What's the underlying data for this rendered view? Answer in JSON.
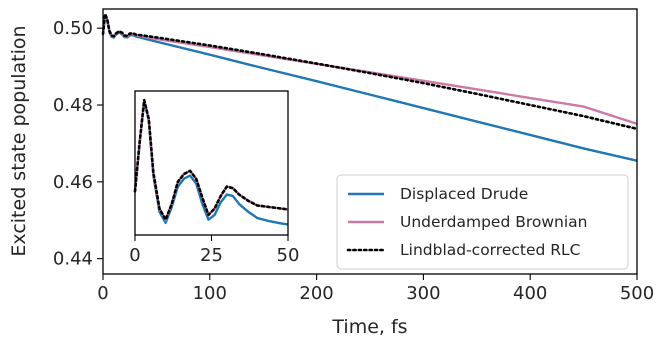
{
  "chart_data": [
    {
      "type": "line",
      "panel": "main",
      "xlabel": "Time, fs",
      "ylabel": "Excited state population",
      "xlim": [
        0,
        500
      ],
      "ylim": [
        0.436,
        0.505
      ],
      "xticks": [
        0,
        100,
        200,
        300,
        400,
        500
      ],
      "xtick_labels": [
        "0",
        "100",
        "200",
        "300",
        "400",
        "500"
      ],
      "yticks": [
        0.44,
        0.46,
        0.48,
        0.5
      ],
      "ytick_labels": [
        "0.44",
        "0.46",
        "0.48",
        "0.50"
      ],
      "grid": false,
      "legend_position": "lower-right",
      "series": [
        {
          "name": "Displaced Drude",
          "color": "#1f77b4",
          "style": "solid",
          "x": [
            0,
            2,
            4,
            6,
            8,
            10,
            12,
            15,
            18,
            20,
            23,
            25,
            28,
            31,
            35,
            40,
            50,
            100,
            150,
            200,
            250,
            300,
            350,
            400,
            450,
            500
          ],
          "y": [
            0.4985,
            0.5035,
            0.502,
            0.499,
            0.4978,
            0.4976,
            0.4983,
            0.4989,
            0.4984,
            0.4977,
            0.4976,
            0.4982,
            0.4982,
            0.4978,
            0.4976,
            0.4972,
            0.4965,
            0.4931,
            0.4896,
            0.4862,
            0.4827,
            0.4792,
            0.4757,
            0.4722,
            0.4687,
            0.4655
          ]
        },
        {
          "name": "Underdamped Brownian",
          "color": "#cc79a7",
          "style": "solid",
          "x": [
            0,
            2,
            4,
            6,
            8,
            10,
            12,
            15,
            18,
            20,
            23,
            25,
            28,
            31,
            35,
            40,
            50,
            100,
            150,
            200,
            250,
            300,
            350,
            400,
            450,
            500
          ],
          "y": [
            0.4985,
            0.5036,
            0.5022,
            0.4992,
            0.498,
            0.4978,
            0.4985,
            0.4991,
            0.4987,
            0.498,
            0.4979,
            0.4985,
            0.4985,
            0.4981,
            0.498,
            0.4977,
            0.4972,
            0.4951,
            0.4929,
            0.4907,
            0.4885,
            0.4863,
            0.4841,
            0.4818,
            0.4796,
            0.4751
          ]
        },
        {
          "name": "Lindblad-corrected RLC",
          "color": "#000000",
          "style": "dotted",
          "x": [
            0,
            2,
            4,
            6,
            8,
            10,
            12,
            15,
            18,
            20,
            23,
            25,
            28,
            31,
            35,
            40,
            50,
            100,
            150,
            200,
            250,
            300,
            350,
            400,
            450,
            500
          ],
          "y": [
            0.4985,
            0.5037,
            0.5023,
            0.4993,
            0.4981,
            0.4979,
            0.4986,
            0.4992,
            0.4988,
            0.4981,
            0.498,
            0.4986,
            0.4987,
            0.4983,
            0.4982,
            0.498,
            0.4976,
            0.4955,
            0.4932,
            0.4908,
            0.4883,
            0.4857,
            0.4829,
            0.48,
            0.4771,
            0.4738
          ]
        }
      ]
    },
    {
      "type": "line",
      "panel": "inset",
      "xlim": [
        0,
        50
      ],
      "xticks": [
        0,
        25,
        50
      ],
      "xtick_labels": [
        "0",
        "25",
        "50"
      ],
      "grid": false,
      "series": [
        {
          "color": "#1f77b4",
          "style": "solid",
          "x": [
            0,
            1.5,
            3,
            4.5,
            6,
            8,
            10,
            12,
            14,
            16,
            18,
            20,
            22,
            24,
            26,
            28,
            30,
            32,
            34,
            37,
            40,
            44,
            48,
            50
          ],
          "y": [
            0.25,
            0.55,
            0.82,
            0.7,
            0.35,
            0.12,
            0.05,
            0.15,
            0.28,
            0.33,
            0.35,
            0.3,
            0.17,
            0.07,
            0.1,
            0.18,
            0.23,
            0.22,
            0.17,
            0.12,
            0.08,
            0.06,
            0.045,
            0.04
          ]
        },
        {
          "color": "#cc79a7",
          "style": "solid",
          "x": [
            0,
            1.5,
            3,
            4.5,
            6,
            8,
            10,
            12,
            14,
            16,
            18,
            20,
            22,
            24,
            26,
            28,
            30,
            32,
            34,
            37,
            40,
            44,
            48,
            50
          ],
          "y": [
            0.25,
            0.56,
            0.83,
            0.71,
            0.37,
            0.14,
            0.07,
            0.17,
            0.31,
            0.36,
            0.38,
            0.33,
            0.21,
            0.1,
            0.14,
            0.22,
            0.28,
            0.27,
            0.23,
            0.19,
            0.16,
            0.15,
            0.14,
            0.135
          ]
        },
        {
          "color": "#000000",
          "style": "dotted",
          "x": [
            0,
            1.5,
            3,
            4.5,
            6,
            8,
            10,
            12,
            14,
            16,
            18,
            20,
            22,
            24,
            26,
            28,
            30,
            32,
            34,
            37,
            40,
            44,
            48,
            50
          ],
          "y": [
            0.25,
            0.56,
            0.83,
            0.71,
            0.37,
            0.14,
            0.07,
            0.17,
            0.31,
            0.36,
            0.38,
            0.33,
            0.21,
            0.1,
            0.14,
            0.22,
            0.28,
            0.27,
            0.23,
            0.19,
            0.16,
            0.15,
            0.14,
            0.135
          ]
        }
      ]
    }
  ]
}
